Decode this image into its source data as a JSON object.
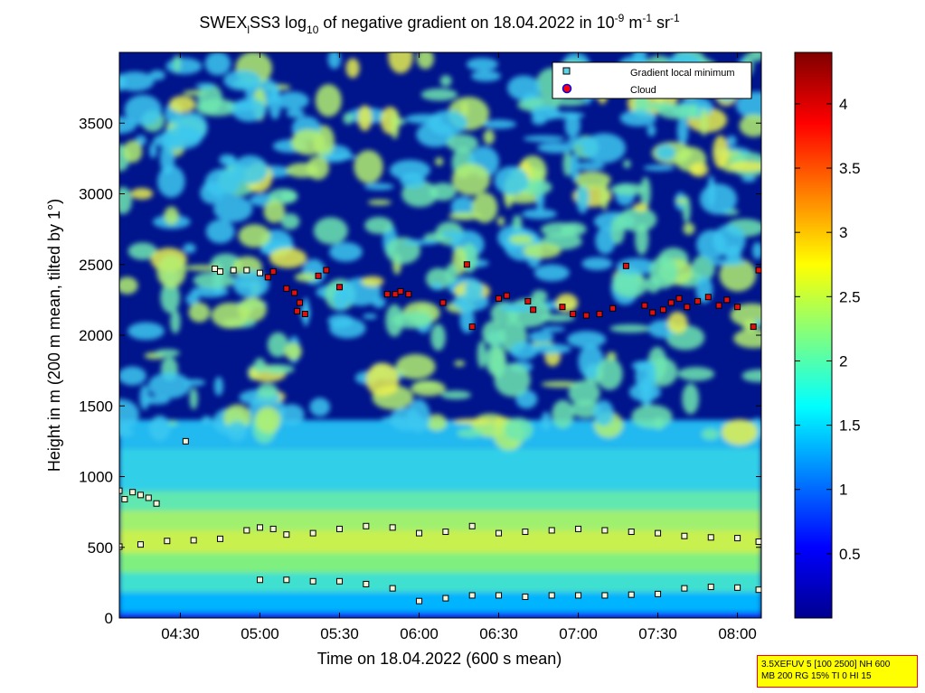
{
  "chart_data": {
    "type": "heatmap",
    "title": {
      "prefix": "SWEX",
      "sub": "l",
      "name": "SS3 log",
      "log_base": "10",
      "middle": " of negative gradient on 18.04.2022 in 10",
      "exp1": "-9",
      "unit1": " m",
      "exp2": "-1",
      "unit2": " sr",
      "exp3": "-1"
    },
    "xlabel": "Time on 18.04.2022 (600 s mean)",
    "ylabel": "Height in m (200 m mean, tilted by 1°)",
    "xlim": [
      "04:07",
      "08:09"
    ],
    "ylim": [
      0,
      4000
    ],
    "x_ticks": [
      "04:30",
      "05:00",
      "05:30",
      "06:00",
      "06:30",
      "07:00",
      "07:30",
      "08:00"
    ],
    "y_ticks": [
      "0",
      "500",
      "1000",
      "1500",
      "2000",
      "2500",
      "3000",
      "3500"
    ],
    "colorbar": {
      "colormap": "jet",
      "range": [
        0,
        4.4
      ],
      "ticks": [
        "0.5",
        "1",
        "1.5",
        "2",
        "2.5",
        "3",
        "3.5",
        "4"
      ]
    },
    "legend": {
      "position": "top-right",
      "entries": [
        {
          "label": "Gradient local minimum",
          "marker": "square",
          "color": "#5fd3e6"
        },
        {
          "label": "Cloud",
          "marker": "circle",
          "color": "#ff0000",
          "edge": "#0000ff"
        }
      ]
    },
    "series": [
      {
        "name": "Gradient local minimum",
        "layer": "upper track",
        "points": [
          [
            "04:07",
            505
          ],
          [
            "04:15",
            520
          ],
          [
            "04:25",
            545
          ],
          [
            "04:35",
            550
          ],
          [
            "04:45",
            560
          ],
          [
            "04:55",
            620
          ],
          [
            "05:00",
            640
          ],
          [
            "05:05",
            630
          ],
          [
            "05:10",
            590
          ],
          [
            "05:20",
            600
          ],
          [
            "05:30",
            630
          ],
          [
            "05:40",
            650
          ],
          [
            "05:50",
            640
          ],
          [
            "06:00",
            600
          ],
          [
            "06:10",
            610
          ],
          [
            "06:20",
            650
          ],
          [
            "06:30",
            600
          ],
          [
            "06:40",
            610
          ],
          [
            "06:50",
            620
          ],
          [
            "07:00",
            630
          ],
          [
            "07:10",
            620
          ],
          [
            "07:20",
            610
          ],
          [
            "07:30",
            600
          ],
          [
            "07:40",
            580
          ],
          [
            "07:50",
            570
          ],
          [
            "08:00",
            565
          ],
          [
            "08:08",
            540
          ]
        ]
      },
      {
        "name": "Gradient local minimum",
        "layer": "lower track",
        "points": [
          [
            "05:00",
            270
          ],
          [
            "05:10",
            270
          ],
          [
            "05:20",
            260
          ],
          [
            "05:30",
            260
          ],
          [
            "05:40",
            240
          ],
          [
            "05:50",
            210
          ],
          [
            "06:00",
            120
          ],
          [
            "06:10",
            140
          ],
          [
            "06:20",
            160
          ],
          [
            "06:30",
            160
          ],
          [
            "06:40",
            150
          ],
          [
            "06:50",
            160
          ],
          [
            "07:00",
            160
          ],
          [
            "07:10",
            160
          ],
          [
            "07:20",
            165
          ],
          [
            "07:30",
            170
          ],
          [
            "07:40",
            210
          ],
          [
            "07:50",
            220
          ],
          [
            "08:00",
            215
          ],
          [
            "08:08",
            200
          ]
        ]
      },
      {
        "name": "Gradient local minimum",
        "layer": "isolated points",
        "points": [
          [
            "04:07",
            900
          ],
          [
            "04:09",
            840
          ],
          [
            "04:12",
            890
          ],
          [
            "04:15",
            870
          ],
          [
            "04:18",
            850
          ],
          [
            "04:21",
            810
          ],
          [
            "04:32",
            1250
          ],
          [
            "04:43",
            2470
          ],
          [
            "04:45",
            2450
          ],
          [
            "04:50",
            2460
          ],
          [
            "04:55",
            2460
          ],
          [
            "05:00",
            2440
          ]
        ]
      },
      {
        "name": "Cloud",
        "points": [
          [
            "05:03",
            2410
          ],
          [
            "05:05",
            2450
          ],
          [
            "05:10",
            2330
          ],
          [
            "05:13",
            2300
          ],
          [
            "05:14",
            2170
          ],
          [
            "05:15",
            2230
          ],
          [
            "05:17",
            2150
          ],
          [
            "05:22",
            2420
          ],
          [
            "05:25",
            2460
          ],
          [
            "05:30",
            2340
          ],
          [
            "05:48",
            2290
          ],
          [
            "05:51",
            2290
          ],
          [
            "05:53",
            2310
          ],
          [
            "05:56",
            2290
          ],
          [
            "06:09",
            2230
          ],
          [
            "06:18",
            2500
          ],
          [
            "06:20",
            2060
          ],
          [
            "06:30",
            2260
          ],
          [
            "06:33",
            2280
          ],
          [
            "06:41",
            2240
          ],
          [
            "06:43",
            2180
          ],
          [
            "06:54",
            2200
          ],
          [
            "06:58",
            2150
          ],
          [
            "07:03",
            2140
          ],
          [
            "07:08",
            2150
          ],
          [
            "07:13",
            2190
          ],
          [
            "07:18",
            2490
          ],
          [
            "07:25",
            2210
          ],
          [
            "07:28",
            2160
          ],
          [
            "07:32",
            2180
          ],
          [
            "07:35",
            2230
          ],
          [
            "07:38",
            2260
          ],
          [
            "07:41",
            2200
          ],
          [
            "07:45",
            2240
          ],
          [
            "07:49",
            2270
          ],
          [
            "07:53",
            2210
          ],
          [
            "07:56",
            2250
          ],
          [
            "08:00",
            2200
          ],
          [
            "08:06",
            2060
          ],
          [
            "08:08",
            2460
          ]
        ]
      }
    ]
  },
  "info_box": {
    "line1": "3.5XEFUV 5 [100 2500] NH 600",
    "line2": "MB 200 RG 15% TI 0 HI 15"
  }
}
